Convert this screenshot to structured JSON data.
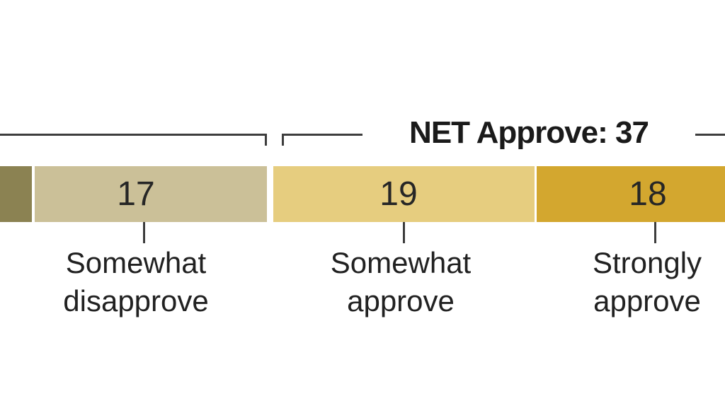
{
  "chart_data": {
    "type": "bar",
    "orientation": "horizontal_stacked",
    "title": "",
    "net": {
      "label": "NET Approve: 37",
      "value": 37
    },
    "segments": [
      {
        "id": "segment-cutoff-left",
        "value": "",
        "label_line1": "",
        "label_line2": "",
        "color": "#8B8252"
      },
      {
        "id": "somewhat-disapprove",
        "value": 17,
        "label_line1": "Somewhat",
        "label_line2": "disapprove",
        "color": "#CBC098"
      },
      {
        "id": "somewhat-approve",
        "value": 19,
        "label_line1": "Somewhat",
        "label_line2": "approve",
        "color": "#E6CD7F"
      },
      {
        "id": "strongly-approve",
        "value": 18,
        "label_line1": "Strongly",
        "label_line2": "approve",
        "color": "#D3A72F"
      }
    ],
    "layout": {
      "legend": "none",
      "grid": "off",
      "brackets": "net-group brackets above bars, left bracket cut off at left edge"
    },
    "colors": {
      "line": "#3D3D3D",
      "text": "#212121",
      "net_text": "#1A1A1A",
      "background": "#FFFFFF"
    }
  }
}
